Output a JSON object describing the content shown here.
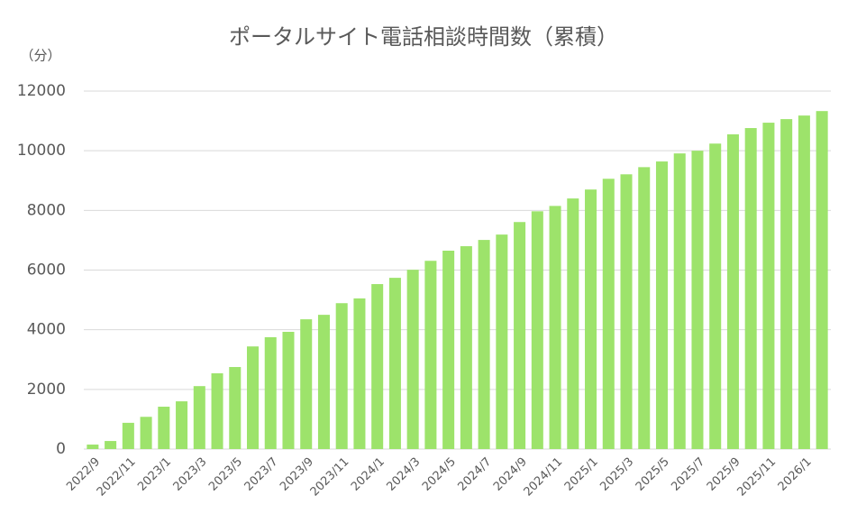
{
  "chart_data": {
    "type": "bar",
    "title": "ポータルサイト電話相談時間数（累積）",
    "y_unit": "（分）",
    "categories": [
      "2022/9",
      null,
      "2022/11",
      null,
      "2023/1",
      null,
      "2023/3",
      null,
      "2023/5",
      null,
      "2023/7",
      null,
      "2023/9",
      null,
      "2023/11",
      null,
      "2024/1",
      null,
      "2024/3",
      null,
      "2024/5",
      null,
      "2024/7",
      null,
      "2024/9",
      null,
      "2024/11",
      null,
      "2025/1",
      null,
      "2025/3",
      null,
      "2025/5",
      null,
      "2025/7",
      null,
      "2025/9",
      null,
      "2025/11",
      null,
      "2026/1",
      null
    ],
    "values": [
      150,
      270,
      880,
      1080,
      1420,
      1600,
      2110,
      2540,
      2750,
      3440,
      3750,
      3930,
      4350,
      4500,
      4890,
      5050,
      5530,
      5740,
      6010,
      6310,
      6650,
      6800,
      7010,
      7190,
      7610,
      7970,
      8150,
      8400,
      8700,
      9060,
      9210,
      9450,
      9640,
      9910,
      10000,
      10240,
      10550,
      10760,
      10940,
      11060,
      11180,
      11330
    ],
    "color": "#9de36b",
    "ylim": [
      0,
      12000
    ],
    "yticks": [
      0,
      2000,
      4000,
      6000,
      8000,
      10000,
      12000
    ],
    "grid": true
  }
}
